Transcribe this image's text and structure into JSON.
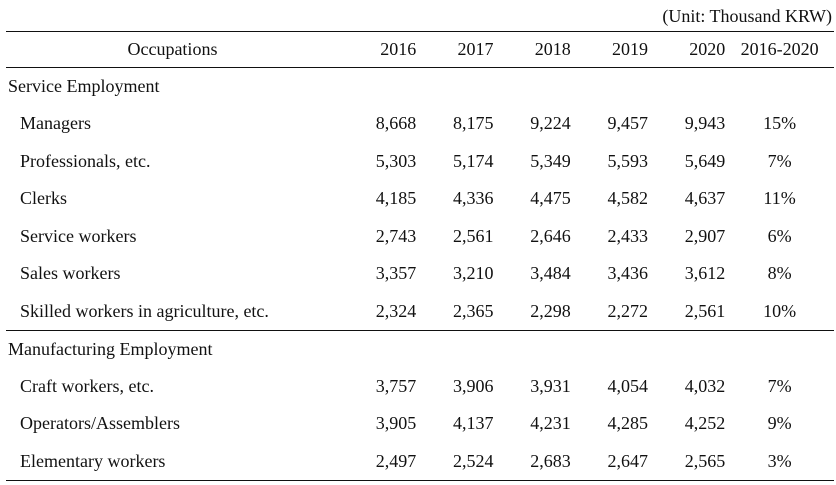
{
  "unit_note": "(Unit: Thousand KRW)",
  "header": {
    "occupation": "Occupations",
    "years": [
      "2016",
      "2017",
      "2018",
      "2019",
      "2020"
    ],
    "change": "2016-2020"
  },
  "sections": [
    {
      "title": "Service Employment",
      "rows": [
        {
          "label": "Managers",
          "values": [
            "8,668",
            "8,175",
            "9,224",
            "9,457",
            "9,943"
          ],
          "change": "15%"
        },
        {
          "label": "Professionals, etc.",
          "values": [
            "5,303",
            "5,174",
            "5,349",
            "5,593",
            "5,649"
          ],
          "change": "7%"
        },
        {
          "label": "Clerks",
          "values": [
            "4,185",
            "4,336",
            "4,475",
            "4,582",
            "4,637"
          ],
          "change": "11%"
        },
        {
          "label": "Service workers",
          "values": [
            "2,743",
            "2,561",
            "2,646",
            "2,433",
            "2,907"
          ],
          "change": "6%"
        },
        {
          "label": "Sales workers",
          "values": [
            "3,357",
            "3,210",
            "3,484",
            "3,436",
            "3,612"
          ],
          "change": "8%"
        },
        {
          "label": "Skilled workers in agriculture, etc.",
          "values": [
            "2,324",
            "2,365",
            "2,298",
            "2,272",
            "2,561"
          ],
          "change": "10%"
        }
      ]
    },
    {
      "title": "Manufacturing Employment",
      "rows": [
        {
          "label": "Craft workers, etc.",
          "values": [
            "3,757",
            "3,906",
            "3,931",
            "4,054",
            "4,032"
          ],
          "change": "7%"
        },
        {
          "label": "Operators/Assemblers",
          "values": [
            "3,905",
            "4,137",
            "4,231",
            "4,285",
            "4,252"
          ],
          "change": "9%"
        },
        {
          "label": "Elementary workers",
          "values": [
            "2,497",
            "2,524",
            "2,683",
            "2,647",
            "2,565"
          ],
          "change": "3%"
        }
      ]
    }
  ]
}
